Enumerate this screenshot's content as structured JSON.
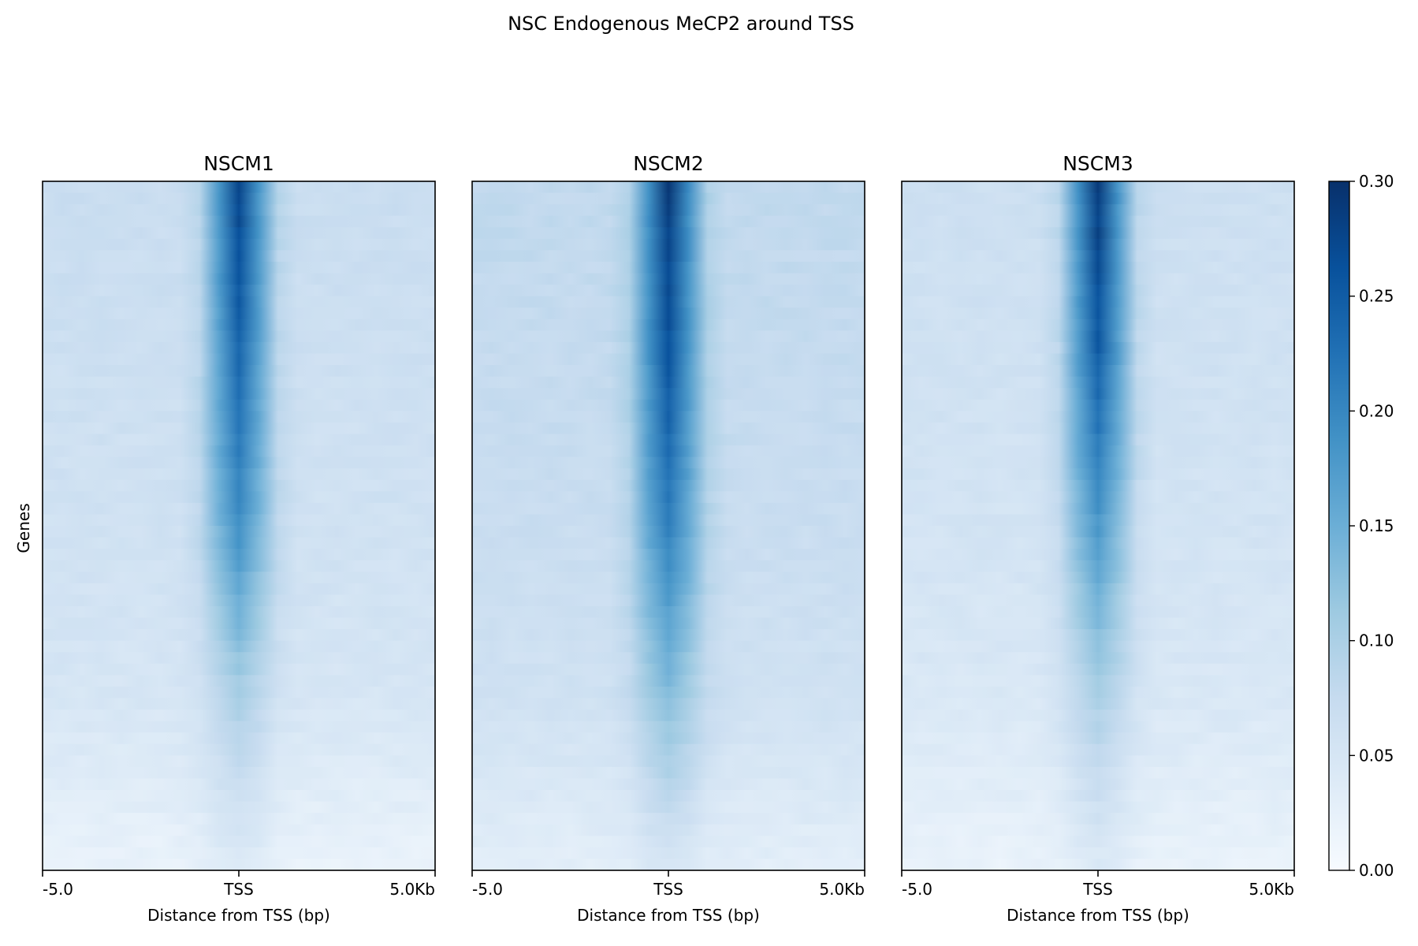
{
  "chart_data": {
    "type": "heatmap",
    "title": "NSC Endogenous MeCP2 around TSS",
    "ylabel": "Genes",
    "colormap": [
      "#f7fbff",
      "#deebf7",
      "#c6dbef",
      "#9ecae1",
      "#6baed6",
      "#4292c6",
      "#2171b5",
      "#08519c",
      "#08306b"
    ],
    "color_range": [
      0.0,
      0.3
    ],
    "colorbar_ticks": [
      "0.00",
      "0.05",
      "0.10",
      "0.15",
      "0.20",
      "0.25",
      "0.30"
    ],
    "panels": [
      {
        "name": "NSCM1",
        "xlabel": "Distance from TSS (bp)",
        "xticks": [
          "-5.0",
          "TSS",
          "5.0Kb"
        ],
        "signal_profile": [
          {
            "gene_rank": 0.0,
            "tss_value": 0.28,
            "background": 0.07
          },
          {
            "gene_rank": 0.25,
            "tss_value": 0.24,
            "background": 0.065
          },
          {
            "gene_rank": 0.5,
            "tss_value": 0.19,
            "background": 0.06
          },
          {
            "gene_rank": 0.75,
            "tss_value": 0.1,
            "background": 0.05
          },
          {
            "gene_rank": 1.0,
            "tss_value": 0.04,
            "background": 0.02
          }
        ]
      },
      {
        "name": "NSCM2",
        "xlabel": "Distance from TSS (bp)",
        "xticks": [
          "-5.0",
          "TSS",
          "5.0Kb"
        ],
        "signal_profile": [
          {
            "gene_rank": 0.0,
            "tss_value": 0.29,
            "background": 0.08
          },
          {
            "gene_rank": 0.25,
            "tss_value": 0.26,
            "background": 0.075
          },
          {
            "gene_rank": 0.5,
            "tss_value": 0.21,
            "background": 0.07
          },
          {
            "gene_rank": 0.75,
            "tss_value": 0.13,
            "background": 0.06
          },
          {
            "gene_rank": 1.0,
            "tss_value": 0.05,
            "background": 0.03
          }
        ]
      },
      {
        "name": "NSCM3",
        "xlabel": "Distance from TSS (bp)",
        "xticks": [
          "-5.0",
          "TSS",
          "5.0Kb"
        ],
        "signal_profile": [
          {
            "gene_rank": 0.0,
            "tss_value": 0.29,
            "background": 0.065
          },
          {
            "gene_rank": 0.25,
            "tss_value": 0.25,
            "background": 0.06
          },
          {
            "gene_rank": 0.5,
            "tss_value": 0.18,
            "background": 0.055
          },
          {
            "gene_rank": 0.75,
            "tss_value": 0.1,
            "background": 0.045
          },
          {
            "gene_rank": 1.0,
            "tss_value": 0.04,
            "background": 0.02
          }
        ]
      }
    ]
  }
}
